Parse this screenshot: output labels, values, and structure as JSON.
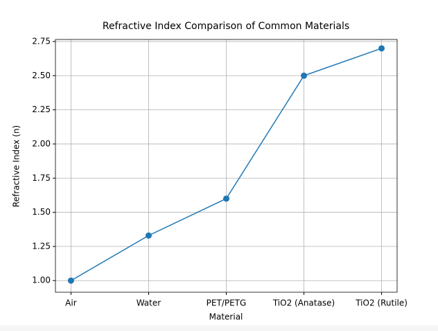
{
  "chart_data": {
    "type": "line",
    "title": "Refractive Index Comparison of Common Materials",
    "x_label": "Material",
    "y_label": "Refractive Index (n)",
    "categories": [
      "Air",
      "Water",
      "PET/PETG",
      "TiO2 (Anatase)",
      "TiO2 (Rutile)"
    ],
    "series": [
      {
        "name": "Refractive Index",
        "color": "#1f77b4",
        "values": [
          1.0,
          1.33,
          1.6,
          2.5,
          2.7
        ]
      }
    ],
    "ylim": [
      0.915,
      2.765
    ],
    "yticks": [
      {
        "value": 1,
        "label": "1.00"
      },
      {
        "value": 1.25,
        "label": "1.25"
      },
      {
        "value": 1.5,
        "label": "1.50"
      },
      {
        "value": 1.75,
        "label": "1.75"
      },
      {
        "value": 2,
        "label": "2.00"
      },
      {
        "value": 2.25,
        "label": "2.25"
      },
      {
        "value": 2.5,
        "label": "2.50"
      },
      {
        "value": 2.75,
        "label": "2.75"
      }
    ],
    "grid": true,
    "markers": true
  }
}
